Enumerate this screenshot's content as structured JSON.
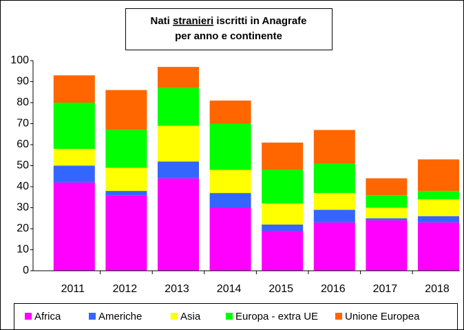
{
  "chart_data": {
    "type": "stacked_bar",
    "title": [
      [
        "Nati",
        "stranieri",
        "iscritti in Anagrafe"
      ],
      [
        "per anno e continente"
      ]
    ],
    "categories": [
      "2011",
      "2012",
      "2013",
      "2014",
      "2015",
      "2016",
      "2017",
      "2018"
    ],
    "series": [
      {
        "name": "Africa",
        "color": "#ff00ff",
        "values": [
          42,
          36,
          44,
          30,
          19,
          23,
          24,
          23
        ]
      },
      {
        "name": "Americhe",
        "color": "#3366ff",
        "values": [
          8,
          2,
          8,
          7,
          3,
          6,
          1,
          3
        ]
      },
      {
        "name": "Asia",
        "color": "#ffff00",
        "values": [
          8,
          11,
          17,
          11,
          10,
          8,
          5,
          8
        ]
      },
      {
        "name": "Europa - extra UE",
        "color": "#00ff00",
        "values": [
          22,
          18,
          18,
          22,
          16,
          14,
          6,
          4
        ]
      },
      {
        "name": "Unione Europea",
        "color": "#ff6600",
        "values": [
          13,
          19,
          10,
          11,
          13,
          16,
          8,
          15
        ]
      }
    ],
    "ylim": [
      0,
      100
    ],
    "yticks": [
      0,
      10,
      20,
      30,
      40,
      50,
      60,
      70,
      80,
      90,
      100
    ]
  }
}
